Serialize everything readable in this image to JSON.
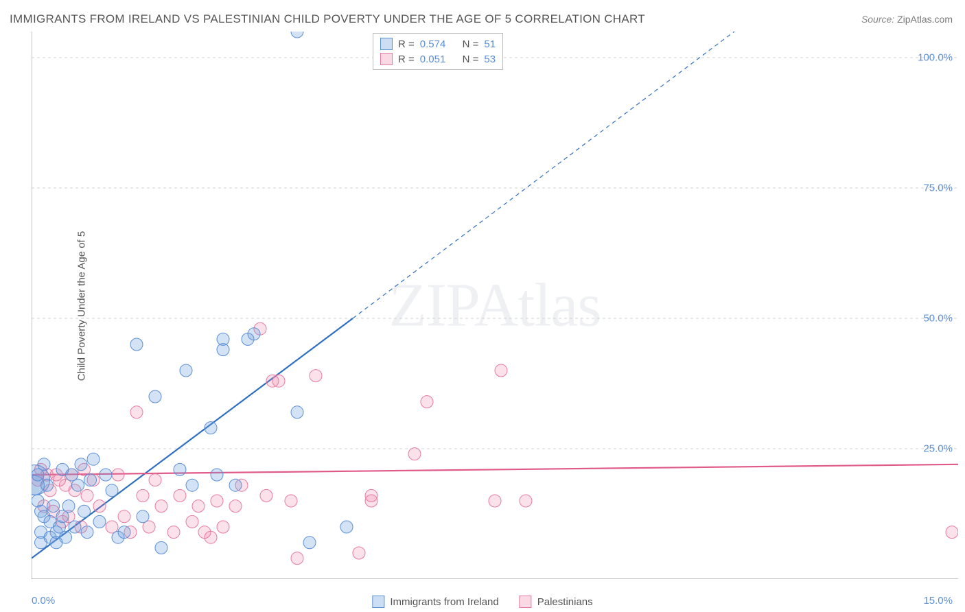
{
  "title": "IMMIGRANTS FROM IRELAND VS PALESTINIAN CHILD POVERTY UNDER THE AGE OF 5 CORRELATION CHART",
  "source_label": "Source:",
  "source_value": "ZipAtlas.com",
  "watermark": "ZIPAtlas",
  "ylabel": "Child Poverty Under the Age of 5",
  "legend_top": {
    "rows": [
      {
        "swatch": "blue",
        "r_label": "R =",
        "r_value": "0.574",
        "n_label": "N =",
        "n_value": "51"
      },
      {
        "swatch": "pink",
        "r_label": "R =",
        "r_value": "0.051",
        "n_label": "N =",
        "n_value": "53"
      }
    ]
  },
  "legend_bottom": [
    {
      "swatch": "blue",
      "label": "Immigrants from Ireland"
    },
    {
      "swatch": "pink",
      "label": "Palestinians"
    }
  ],
  "colors": {
    "blue_fill": "rgba(108,160,220,0.30)",
    "blue_stroke": "#5a8fd6",
    "blue_line": "#2e6fc4",
    "pink_fill": "rgba(236,120,160,0.22)",
    "pink_stroke": "#e77aa0",
    "pink_line": "#e05a8a",
    "grid": "#d0d0d0",
    "axis": "#888888",
    "tick_label": "#5a8fd6",
    "text": "#555555",
    "background": "#ffffff"
  },
  "axes": {
    "xlim": [
      0,
      15
    ],
    "ylim": [
      0,
      105
    ],
    "yticks": [
      25,
      50,
      75,
      100
    ],
    "ytick_labels": [
      "25.0%",
      "50.0%",
      "75.0%",
      "100.0%"
    ],
    "xticks": [
      1.7,
      3.4,
      5.1,
      6.8,
      8.5,
      10.2,
      11.9,
      13.6
    ],
    "xlabel_min": "0.0%",
    "xlabel_max": "15.0%"
  },
  "marker_radius_default": 9,
  "line_width": 2.2,
  "trend_lines": {
    "blue": {
      "x1": 0,
      "y1": 4,
      "x2_solid": 5.2,
      "y2_solid": 50,
      "x2_dash": 11.6,
      "y2_dash": 107
    },
    "pink": {
      "x1": 0,
      "y1": 20,
      "x2": 15,
      "y2": 22
    }
  },
  "series": {
    "blue": [
      {
        "x": 0.05,
        "y": 19,
        "r": 22
      },
      {
        "x": 0.05,
        "y": 18,
        "r": 14
      },
      {
        "x": 0.1,
        "y": 20
      },
      {
        "x": 0.1,
        "y": 15
      },
      {
        "x": 0.15,
        "y": 9
      },
      {
        "x": 0.15,
        "y": 13
      },
      {
        "x": 0.15,
        "y": 7
      },
      {
        "x": 0.2,
        "y": 12
      },
      {
        "x": 0.2,
        "y": 22
      },
      {
        "x": 0.25,
        "y": 18
      },
      {
        "x": 0.3,
        "y": 8
      },
      {
        "x": 0.3,
        "y": 11
      },
      {
        "x": 0.35,
        "y": 14
      },
      {
        "x": 0.4,
        "y": 9
      },
      {
        "x": 0.4,
        "y": 7
      },
      {
        "x": 0.45,
        "y": 10
      },
      {
        "x": 0.5,
        "y": 12
      },
      {
        "x": 0.5,
        "y": 21
      },
      {
        "x": 0.55,
        "y": 8
      },
      {
        "x": 0.6,
        "y": 14
      },
      {
        "x": 0.65,
        "y": 20
      },
      {
        "x": 0.7,
        "y": 10
      },
      {
        "x": 0.75,
        "y": 18
      },
      {
        "x": 0.8,
        "y": 22
      },
      {
        "x": 0.85,
        "y": 13
      },
      {
        "x": 0.9,
        "y": 9
      },
      {
        "x": 0.95,
        "y": 19
      },
      {
        "x": 1.0,
        "y": 23
      },
      {
        "x": 1.1,
        "y": 11
      },
      {
        "x": 1.2,
        "y": 20
      },
      {
        "x": 1.3,
        "y": 17
      },
      {
        "x": 1.4,
        "y": 8
      },
      {
        "x": 1.5,
        "y": 9
      },
      {
        "x": 1.7,
        "y": 45
      },
      {
        "x": 1.8,
        "y": 12
      },
      {
        "x": 2.0,
        "y": 35
      },
      {
        "x": 2.1,
        "y": 6
      },
      {
        "x": 2.4,
        "y": 21
      },
      {
        "x": 2.5,
        "y": 40
      },
      {
        "x": 2.6,
        "y": 18
      },
      {
        "x": 2.9,
        "y": 29
      },
      {
        "x": 3.0,
        "y": 20
      },
      {
        "x": 3.1,
        "y": 46
      },
      {
        "x": 3.1,
        "y": 44
      },
      {
        "x": 3.3,
        "y": 18
      },
      {
        "x": 3.5,
        "y": 46
      },
      {
        "x": 3.6,
        "y": 47
      },
      {
        "x": 4.3,
        "y": 32
      },
      {
        "x": 4.3,
        "y": 105
      },
      {
        "x": 4.5,
        "y": 7
      },
      {
        "x": 5.1,
        "y": 10
      }
    ],
    "pink": [
      {
        "x": 0.1,
        "y": 19
      },
      {
        "x": 0.15,
        "y": 21
      },
      {
        "x": 0.2,
        "y": 14
      },
      {
        "x": 0.25,
        "y": 20
      },
      {
        "x": 0.3,
        "y": 17
      },
      {
        "x": 0.35,
        "y": 13
      },
      {
        "x": 0.4,
        "y": 20
      },
      {
        "x": 0.45,
        "y": 19
      },
      {
        "x": 0.5,
        "y": 11
      },
      {
        "x": 0.55,
        "y": 18
      },
      {
        "x": 0.6,
        "y": 12
      },
      {
        "x": 0.65,
        "y": 20
      },
      {
        "x": 0.7,
        "y": 17
      },
      {
        "x": 0.8,
        "y": 10
      },
      {
        "x": 0.85,
        "y": 21
      },
      {
        "x": 0.9,
        "y": 16
      },
      {
        "x": 1.0,
        "y": 19
      },
      {
        "x": 1.1,
        "y": 14
      },
      {
        "x": 1.3,
        "y": 10
      },
      {
        "x": 1.4,
        "y": 20
      },
      {
        "x": 1.5,
        "y": 12
      },
      {
        "x": 1.6,
        "y": 9
      },
      {
        "x": 1.7,
        "y": 32
      },
      {
        "x": 1.8,
        "y": 16
      },
      {
        "x": 1.9,
        "y": 10
      },
      {
        "x": 2.0,
        "y": 19
      },
      {
        "x": 2.1,
        "y": 14
      },
      {
        "x": 2.3,
        "y": 9
      },
      {
        "x": 2.4,
        "y": 16
      },
      {
        "x": 2.6,
        "y": 11
      },
      {
        "x": 2.7,
        "y": 14
      },
      {
        "x": 2.8,
        "y": 9
      },
      {
        "x": 2.9,
        "y": 8
      },
      {
        "x": 3.0,
        "y": 15
      },
      {
        "x": 3.1,
        "y": 10
      },
      {
        "x": 3.3,
        "y": 14
      },
      {
        "x": 3.4,
        "y": 18
      },
      {
        "x": 3.7,
        "y": 48
      },
      {
        "x": 3.8,
        "y": 16
      },
      {
        "x": 3.9,
        "y": 38
      },
      {
        "x": 4.0,
        "y": 38
      },
      {
        "x": 4.2,
        "y": 15
      },
      {
        "x": 4.3,
        "y": 4
      },
      {
        "x": 4.6,
        "y": 39
      },
      {
        "x": 5.3,
        "y": 5
      },
      {
        "x": 5.5,
        "y": 16
      },
      {
        "x": 5.5,
        "y": 15
      },
      {
        "x": 6.2,
        "y": 24
      },
      {
        "x": 6.4,
        "y": 34
      },
      {
        "x": 7.5,
        "y": 15
      },
      {
        "x": 7.6,
        "y": 40
      },
      {
        "x": 8.0,
        "y": 15
      },
      {
        "x": 14.9,
        "y": 9
      }
    ]
  }
}
